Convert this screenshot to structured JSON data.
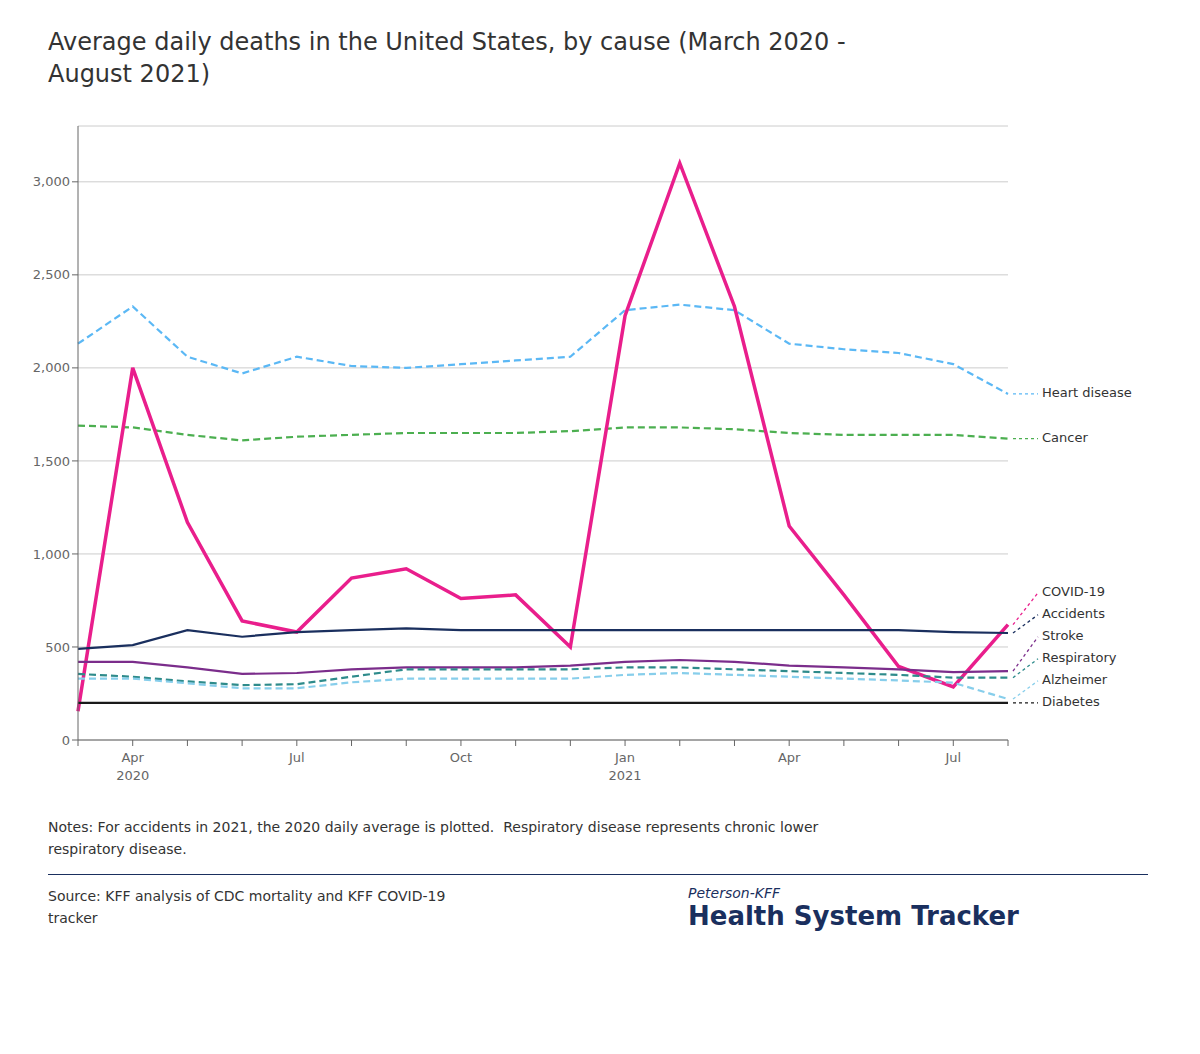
{
  "chart_data": {
    "type": "line",
    "title": "Average daily deaths in the United States, by cause (March 2020 -\nAugust 2021)",
    "annotations": [
      "Notes: For accidents in 2021, the 2020 daily average is plotted.  Respiratory disease represents chronic lower\nrespiratory disease.",
      "Source: KFF analysis of CDC mortality and KFF COVID-19\ntracker",
      "Peterson-KFF",
      "Health System Tracker"
    ],
    "categories": [
      null,
      "Apr\n2020",
      null,
      null,
      "Jul",
      null,
      null,
      "Oct",
      null,
      null,
      "Jan\n2021",
      null,
      null,
      "Apr",
      null,
      null,
      "Jul",
      null
    ],
    "series": [
      {
        "name": "Heart disease",
        "color": "#5bb8f5",
        "line_style": "dashed",
        "values": [
          2130,
          2330,
          2060,
          1970,
          2060,
          2010,
          2000,
          2020,
          2040,
          2060,
          2310,
          2340,
          2310,
          2130,
          2100,
          2080,
          2020,
          1860
        ]
      },
      {
        "name": "Cancer",
        "color": "#4caf50",
        "line_style": "dashed",
        "values": [
          1690,
          1680,
          1640,
          1610,
          1630,
          1640,
          1650,
          1650,
          1650,
          1660,
          1680,
          1680,
          1670,
          1650,
          1640,
          1640,
          1640,
          1620
        ]
      },
      {
        "name": "COVID-19",
        "color": "#e91e8c",
        "line_style": "solid",
        "values": [
          155,
          2000,
          1170,
          640,
          580,
          870,
          920,
          760,
          780,
          500,
          2280,
          3100,
          2330,
          1150,
          780,
          395,
          285,
          620
        ]
      },
      {
        "name": "Accidents",
        "color": "#1a2f5e",
        "line_style": "solid",
        "values": [
          490,
          510,
          590,
          555,
          580,
          590,
          600,
          590,
          590,
          590,
          590,
          590,
          590,
          590,
          590,
          590,
          580,
          575
        ]
      },
      {
        "name": "Stroke",
        "color": "#7b2d8b",
        "line_style": "solid",
        "values": [
          420,
          420,
          390,
          355,
          360,
          380,
          390,
          390,
          390,
          400,
          420,
          430,
          420,
          400,
          390,
          380,
          365,
          370
        ]
      },
      {
        "name": "Respiratory",
        "color": "#2e8b8b",
        "line_style": "dashed",
        "values": [
          355,
          340,
          315,
          295,
          300,
          340,
          380,
          380,
          380,
          380,
          390,
          390,
          380,
          370,
          360,
          350,
          335,
          335
        ]
      },
      {
        "name": "Alzheimer",
        "color": "#87ceeb",
        "line_style": "dashed",
        "values": [
          330,
          330,
          305,
          278,
          278,
          310,
          330,
          330,
          330,
          330,
          350,
          360,
          350,
          340,
          330,
          320,
          308,
          220
        ]
      },
      {
        "name": "Diabetes",
        "color": "#1a1a1a",
        "line_style": "solid",
        "values": [
          200,
          200,
          200,
          200,
          200,
          200,
          200,
          200,
          200,
          200,
          200,
          200,
          200,
          200,
          200,
          200,
          200,
          200
        ]
      }
    ],
    "ylim": [
      0,
      3300
    ],
    "yticks": [
      0,
      500,
      {
        "value": 1000,
        "label": "1,000"
      },
      {
        "value": 1500,
        "label": "1,500"
      },
      {
        "value": 2000,
        "label": "2,000"
      },
      {
        "value": 2500,
        "label": "2,500"
      },
      {
        "value": 3000,
        "label": "3,000"
      }
    ],
    "grid": true
  }
}
